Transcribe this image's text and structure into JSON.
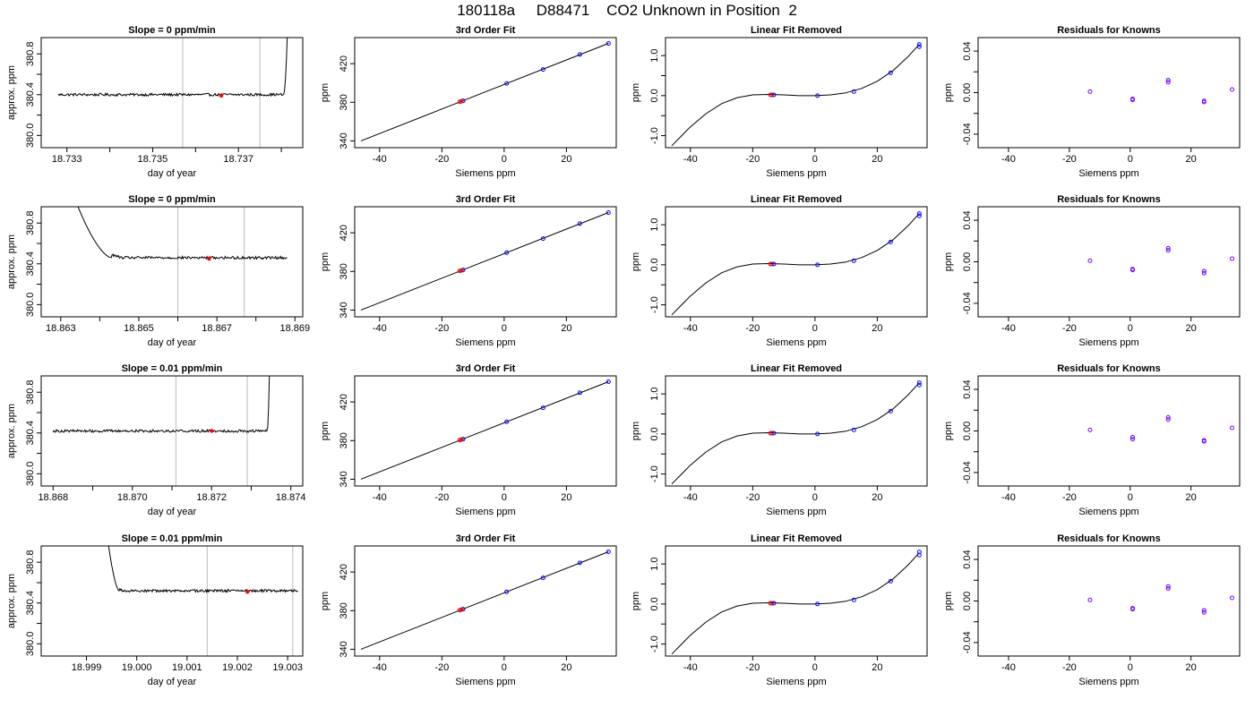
{
  "page": {
    "title": "180118a     D88471    CO2 Unknown in Position  2"
  },
  "colors": {
    "line": "#000000",
    "axis": "#000000",
    "window": "#bbbbbb",
    "known_marker": "#0000ff",
    "unknown_marker": "#ff0000",
    "residual_marker": "#7700ff"
  },
  "chart_data": [
    {
      "type": "line",
      "title": "Slope =  0  ppm/min",
      "xlabel": "day of year",
      "ylabel": "approx. ppm",
      "xlim": [
        18.7324,
        18.7385
      ],
      "ylim": [
        379.88,
        380.96
      ],
      "xticks": [
        18.733,
        18.734,
        18.735,
        18.736,
        18.737,
        18.738
      ],
      "xticklabels": [
        "18.733",
        "",
        "18.735",
        "",
        "18.737",
        ""
      ],
      "yticks": [
        380.0,
        380.2,
        380.4,
        380.6,
        380.8
      ],
      "yticklabels": [
        "380.0",
        "",
        "380.4",
        "",
        "380.8"
      ],
      "series": [
        {
          "base": 380.4,
          "noise": 0.013,
          "x_start": 18.7328,
          "x_end": 18.7382,
          "ramp": {
            "type": "up",
            "x": 18.73805,
            "top": 381.0
          }
        }
      ],
      "window_lines": [
        18.7357,
        18.7375
      ],
      "point": {
        "x": 18.7366,
        "y": 380.39
      }
    },
    {
      "type": "scatter",
      "title": "3rd Order Fit",
      "xlabel": "Siemens ppm",
      "ylabel": "ppm",
      "xlim": [
        -48,
        36
      ],
      "ylim": [
        333,
        447
      ],
      "xticks": [
        -40,
        -20,
        0,
        20
      ],
      "yticks": [
        340,
        380,
        420
      ],
      "fit_line": {
        "x": [
          -46,
          33.5
        ],
        "y": [
          340,
          441
        ]
      },
      "knowns": {
        "x": [
          -13.2,
          0.8,
          12.5,
          24.3,
          33.5
        ],
        "y": [
          381.5,
          399.5,
          414.0,
          429.5,
          441.0
        ]
      },
      "unknowns": {
        "x": [
          -14.3,
          -13.8
        ],
        "y": [
          380.5,
          381.0
        ]
      }
    },
    {
      "type": "line",
      "title": "Linear Fit Removed",
      "xlabel": "Siemens ppm",
      "ylabel": "ppm",
      "xlim": [
        -48,
        36
      ],
      "ylim": [
        -1.3,
        1.45
      ],
      "xticks": [
        -40,
        -20,
        0,
        20
      ],
      "yticks": [
        -1.0,
        -0.5,
        0.0,
        0.5,
        1.0
      ],
      "yticklabels": [
        "-1.0",
        "",
        "0.0",
        "",
        "1.0"
      ],
      "curve": {
        "x": [
          -46,
          -40,
          -35,
          -30,
          -25,
          -20,
          -15,
          -10,
          -5,
          0,
          5,
          10,
          15,
          20,
          25,
          30,
          33.5
        ],
        "y": [
          -1.25,
          -0.78,
          -0.45,
          -0.2,
          -0.05,
          0.02,
          0.03,
          0.02,
          0.0,
          0.0,
          0.02,
          0.07,
          0.18,
          0.36,
          0.62,
          0.98,
          1.28
        ]
      },
      "knowns": {
        "x": [
          -13.2,
          0.8,
          12.5,
          24.3,
          33.5,
          33.5
        ],
        "y": [
          0.02,
          0.0,
          0.1,
          0.57,
          1.22,
          1.28
        ]
      },
      "unknowns": {
        "x": [
          -14.3,
          -13.8
        ],
        "y": [
          0.02,
          0.02
        ]
      }
    },
    {
      "type": "scatter",
      "title": "Residuals for Knowns",
      "xlabel": "Siemens ppm",
      "ylabel": "ppm",
      "xlim": [
        -50,
        36
      ],
      "ylim": [
        -0.053,
        0.053
      ],
      "xticks": [
        -40,
        -20,
        0,
        20
      ],
      "yticks": [
        -0.04,
        -0.02,
        0.0,
        0.02,
        0.04
      ],
      "yticklabels": [
        "-0.04",
        "",
        "0.00",
        "",
        "0.04"
      ],
      "points": {
        "x": [
          -13.2,
          0.8,
          0.8,
          12.5,
          12.5,
          24.3,
          24.3,
          33.5
        ],
        "y": [
          0.001,
          -0.006,
          -0.007,
          0.012,
          0.01,
          -0.008,
          -0.009,
          0.003
        ]
      }
    },
    {
      "type": "line",
      "title": "Slope =  0  ppm/min",
      "xlabel": "day of year",
      "ylabel": "approx. ppm",
      "xlim": [
        18.8625,
        18.8692
      ],
      "ylim": [
        379.88,
        380.96
      ],
      "xticks": [
        18.863,
        18.864,
        18.865,
        18.866,
        18.867,
        18.868,
        18.869
      ],
      "xticklabels": [
        "18.863",
        "",
        "18.865",
        "",
        "18.867",
        "",
        "18.869"
      ],
      "yticks": [
        380.0,
        380.2,
        380.4,
        380.6,
        380.8
      ],
      "yticklabels": [
        "380.0",
        "",
        "380.4",
        "",
        "380.8"
      ],
      "series": [
        {
          "base": 380.46,
          "noise": 0.013,
          "x_start": 18.8633,
          "x_end": 18.8688,
          "ramp": {
            "type": "down",
            "x": 18.8643,
            "top": 381.1
          }
        }
      ],
      "window_lines": [
        18.866,
        18.8677
      ],
      "point": {
        "x": 18.8668,
        "y": 380.45
      }
    },
    {
      "type": "scatter",
      "title": "3rd Order Fit",
      "xlabel": "Siemens ppm",
      "ylabel": "ppm",
      "xlim": [
        -48,
        36
      ],
      "ylim": [
        333,
        447
      ],
      "xticks": [
        -40,
        -20,
        0,
        20
      ],
      "yticks": [
        340,
        380,
        420
      ],
      "fit_line": {
        "x": [
          -46,
          33.5
        ],
        "y": [
          340,
          441
        ]
      },
      "knowns": {
        "x": [
          -13.2,
          0.8,
          12.5,
          24.3,
          33.5
        ],
        "y": [
          381.5,
          399.5,
          414.0,
          429.5,
          441.0
        ]
      },
      "unknowns": {
        "x": [
          -14.3,
          -13.8
        ],
        "y": [
          380.5,
          381.0
        ]
      }
    },
    {
      "type": "line",
      "title": "Linear Fit Removed",
      "xlabel": "Siemens ppm",
      "ylabel": "ppm",
      "xlim": [
        -48,
        36
      ],
      "ylim": [
        -1.3,
        1.45
      ],
      "xticks": [
        -40,
        -20,
        0,
        20
      ],
      "yticks": [
        -1.0,
        -0.5,
        0.0,
        0.5,
        1.0
      ],
      "yticklabels": [
        "-1.0",
        "",
        "0.0",
        "",
        "1.0"
      ],
      "curve": {
        "x": [
          -46,
          -40,
          -35,
          -30,
          -25,
          -20,
          -15,
          -10,
          -5,
          0,
          5,
          10,
          15,
          20,
          25,
          30,
          33.5
        ],
        "y": [
          -1.25,
          -0.78,
          -0.45,
          -0.2,
          -0.05,
          0.02,
          0.03,
          0.02,
          0.0,
          0.0,
          0.02,
          0.07,
          0.18,
          0.36,
          0.62,
          0.98,
          1.28
        ]
      },
      "knowns": {
        "x": [
          -13.2,
          0.8,
          12.5,
          24.3,
          33.5,
          33.5
        ],
        "y": [
          0.02,
          0.0,
          0.1,
          0.57,
          1.22,
          1.28
        ]
      },
      "unknowns": {
        "x": [
          -14.3,
          -13.8
        ],
        "y": [
          0.02,
          0.02
        ]
      }
    },
    {
      "type": "scatter",
      "title": "Residuals for Knowns",
      "xlabel": "Siemens ppm",
      "ylabel": "ppm",
      "xlim": [
        -50,
        36
      ],
      "ylim": [
        -0.053,
        0.053
      ],
      "xticks": [
        -40,
        -20,
        0,
        20
      ],
      "yticks": [
        -0.04,
        -0.02,
        0.0,
        0.02,
        0.04
      ],
      "yticklabels": [
        "-0.04",
        "",
        "0.00",
        "",
        "0.04"
      ],
      "points": {
        "x": [
          -13.2,
          0.8,
          0.8,
          12.5,
          12.5,
          24.3,
          24.3,
          33.5
        ],
        "y": [
          0.001,
          -0.007,
          -0.008,
          0.013,
          0.011,
          -0.009,
          -0.011,
          0.003
        ]
      }
    },
    {
      "type": "line",
      "title": "Slope =  0.01  ppm/min",
      "xlabel": "day of year",
      "ylabel": "approx. ppm",
      "xlim": [
        18.8677,
        18.8743
      ],
      "ylim": [
        379.88,
        380.96
      ],
      "xticks": [
        18.868,
        18.869,
        18.87,
        18.871,
        18.872,
        18.873,
        18.874
      ],
      "xticklabels": [
        "18.868",
        "",
        "18.870",
        "",
        "18.872",
        "",
        "18.874"
      ],
      "yticks": [
        380.0,
        380.2,
        380.4,
        380.6,
        380.8
      ],
      "yticklabels": [
        "380.0",
        "",
        "380.4",
        "",
        "380.8"
      ],
      "series": [
        {
          "base": 380.42,
          "noise": 0.013,
          "x_start": 18.868,
          "x_end": 18.8735,
          "ramp": {
            "type": "up",
            "x": 18.8734,
            "top": 381.0
          }
        }
      ],
      "window_lines": [
        18.8711,
        18.8729
      ],
      "point": {
        "x": 18.872,
        "y": 380.42
      }
    },
    {
      "type": "scatter",
      "title": "3rd Order Fit",
      "xlabel": "Siemens ppm",
      "ylabel": "ppm",
      "xlim": [
        -48,
        36
      ],
      "ylim": [
        333,
        447
      ],
      "xticks": [
        -40,
        -20,
        0,
        20
      ],
      "yticks": [
        340,
        380,
        420
      ],
      "fit_line": {
        "x": [
          -46,
          33.5
        ],
        "y": [
          340,
          441
        ]
      },
      "knowns": {
        "x": [
          -13.2,
          0.8,
          12.5,
          24.3,
          33.5
        ],
        "y": [
          381.5,
          399.5,
          414.0,
          429.5,
          441.0
        ]
      },
      "unknowns": {
        "x": [
          -14.3,
          -13.8
        ],
        "y": [
          380.5,
          381.0
        ]
      }
    },
    {
      "type": "line",
      "title": "Linear Fit Removed",
      "xlabel": "Siemens ppm",
      "ylabel": "ppm",
      "xlim": [
        -48,
        36
      ],
      "ylim": [
        -1.3,
        1.45
      ],
      "xticks": [
        -40,
        -20,
        0,
        20
      ],
      "yticks": [
        -1.0,
        -0.5,
        0.0,
        0.5,
        1.0
      ],
      "yticklabels": [
        "-1.0",
        "",
        "0.0",
        "",
        "1.0"
      ],
      "curve": {
        "x": [
          -46,
          -40,
          -35,
          -30,
          -25,
          -20,
          -15,
          -10,
          -5,
          0,
          5,
          10,
          15,
          20,
          25,
          30,
          33.5
        ],
        "y": [
          -1.25,
          -0.78,
          -0.45,
          -0.2,
          -0.05,
          0.02,
          0.03,
          0.02,
          0.0,
          0.0,
          0.02,
          0.07,
          0.18,
          0.36,
          0.62,
          0.98,
          1.28
        ]
      },
      "knowns": {
        "x": [
          -13.2,
          0.8,
          12.5,
          24.3,
          33.5,
          33.5
        ],
        "y": [
          0.02,
          0.0,
          0.1,
          0.57,
          1.22,
          1.28
        ]
      },
      "unknowns": {
        "x": [
          -14.3,
          -13.8
        ],
        "y": [
          0.02,
          0.02
        ]
      }
    },
    {
      "type": "scatter",
      "title": "Residuals for Knowns",
      "xlabel": "Siemens ppm",
      "ylabel": "ppm",
      "xlim": [
        -50,
        36
      ],
      "ylim": [
        -0.053,
        0.053
      ],
      "xticks": [
        -40,
        -20,
        0,
        20
      ],
      "yticks": [
        -0.04,
        -0.02,
        0.0,
        0.02,
        0.04
      ],
      "yticklabels": [
        "-0.04",
        "",
        "0.00",
        "",
        "0.04"
      ],
      "points": {
        "x": [
          -13.2,
          0.8,
          0.8,
          12.5,
          12.5,
          24.3,
          24.3,
          33.5
        ],
        "y": [
          0.001,
          -0.006,
          -0.008,
          0.013,
          0.011,
          -0.009,
          -0.01,
          0.003
        ]
      }
    },
    {
      "type": "line",
      "title": "Slope =  0.01  ppm/min",
      "xlabel": "day of year",
      "ylabel": "approx. ppm",
      "xlim": [
        18.9981,
        19.0033
      ],
      "ylim": [
        379.88,
        380.96
      ],
      "xticks": [
        18.999,
        19.0,
        19.001,
        19.002,
        19.003
      ],
      "xticklabels": [
        "18.999",
        "19.000",
        "19.001",
        "19.002",
        "19.003"
      ],
      "yticks": [
        380.0,
        380.2,
        380.4,
        380.6,
        380.8
      ],
      "yticklabels": [
        "380.0",
        "",
        "380.4",
        "",
        "380.8"
      ],
      "series": [
        {
          "base": 380.52,
          "noise": 0.012,
          "x_start": 18.9994,
          "x_end": 19.0032,
          "ramp": {
            "type": "down",
            "x": 18.99965,
            "top": 381.1
          }
        }
      ],
      "window_lines": [
        19.0014,
        19.0031
      ],
      "point": {
        "x": 19.0022,
        "y": 380.51
      }
    },
    {
      "type": "scatter",
      "title": "3rd Order Fit",
      "xlabel": "Siemens ppm",
      "ylabel": "ppm",
      "xlim": [
        -48,
        36
      ],
      "ylim": [
        333,
        447
      ],
      "xticks": [
        -40,
        -20,
        0,
        20
      ],
      "yticks": [
        340,
        380,
        420
      ],
      "fit_line": {
        "x": [
          -46,
          33.5
        ],
        "y": [
          340,
          441
        ]
      },
      "knowns": {
        "x": [
          -13.2,
          0.8,
          12.5,
          24.3,
          33.5
        ],
        "y": [
          381.5,
          399.5,
          414.0,
          429.5,
          441.0
        ]
      },
      "unknowns": {
        "x": [
          -14.3,
          -13.8
        ],
        "y": [
          380.5,
          381.0
        ]
      }
    },
    {
      "type": "line",
      "title": "Linear Fit Removed",
      "xlabel": "Siemens ppm",
      "ylabel": "ppm",
      "xlim": [
        -48,
        36
      ],
      "ylim": [
        -1.3,
        1.45
      ],
      "xticks": [
        -40,
        -20,
        0,
        20
      ],
      "yticks": [
        -1.0,
        -0.5,
        0.0,
        0.5,
        1.0
      ],
      "yticklabels": [
        "-1.0",
        "",
        "0.0",
        "",
        "1.0"
      ],
      "curve": {
        "x": [
          -46,
          -40,
          -35,
          -30,
          -25,
          -20,
          -15,
          -10,
          -5,
          0,
          5,
          10,
          15,
          20,
          25,
          30,
          33.5
        ],
        "y": [
          -1.25,
          -0.78,
          -0.45,
          -0.2,
          -0.05,
          0.02,
          0.03,
          0.02,
          0.0,
          0.0,
          0.02,
          0.07,
          0.18,
          0.36,
          0.62,
          0.98,
          1.28
        ]
      },
      "knowns": {
        "x": [
          -13.2,
          0.8,
          12.5,
          24.3,
          33.5,
          33.5
        ],
        "y": [
          0.02,
          0.0,
          0.1,
          0.57,
          1.22,
          1.3
        ]
      },
      "unknowns": {
        "x": [
          -14.3,
          -13.8
        ],
        "y": [
          0.02,
          0.02
        ]
      }
    },
    {
      "type": "scatter",
      "title": "Residuals for Knowns",
      "xlabel": "Siemens ppm",
      "ylabel": "ppm",
      "xlim": [
        -50,
        36
      ],
      "ylim": [
        -0.053,
        0.053
      ],
      "xticks": [
        -40,
        -20,
        0,
        20
      ],
      "yticks": [
        -0.04,
        -0.02,
        0.0,
        0.02,
        0.04
      ],
      "yticklabels": [
        "-0.04",
        "",
        "0.00",
        "",
        "0.04"
      ],
      "points": {
        "x": [
          -13.2,
          0.8,
          0.8,
          12.5,
          12.5,
          24.3,
          24.3,
          33.5
        ],
        "y": [
          0.001,
          -0.007,
          -0.008,
          0.014,
          0.012,
          -0.009,
          -0.011,
          0.003
        ]
      }
    }
  ]
}
